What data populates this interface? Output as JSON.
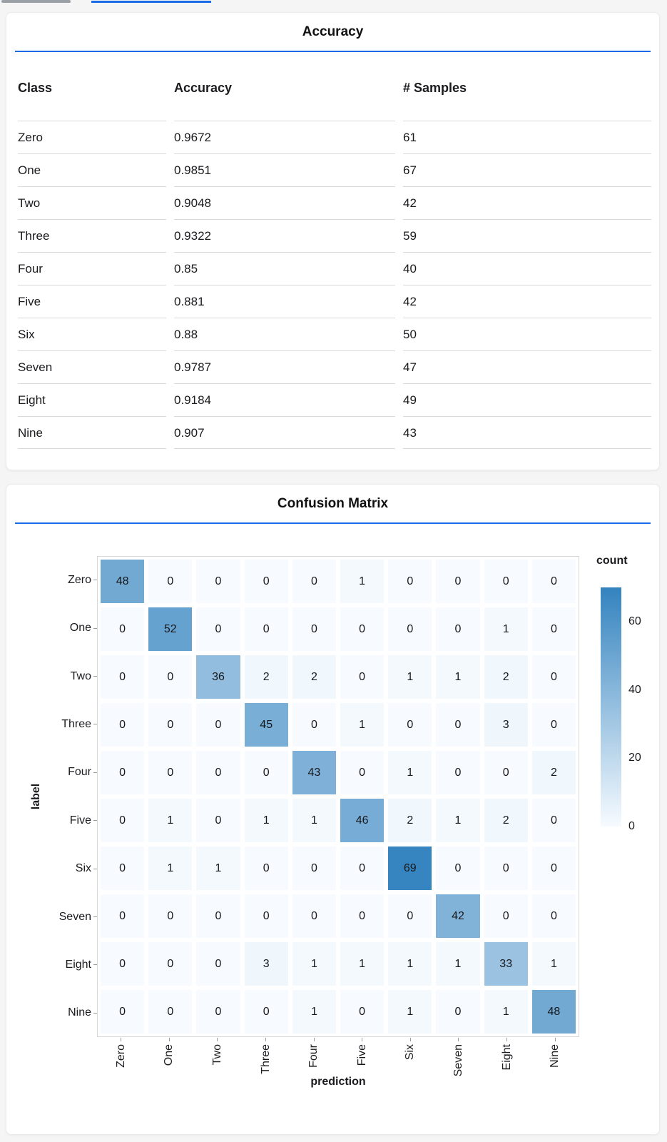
{
  "colors": {
    "accent_blue": "#1a6be8",
    "inactive_tab_gray": "#9aa0a6",
    "table_border": "#d9d9d9",
    "heat_min": "#f7fbff",
    "heat_max": "#3383bf"
  },
  "chart_data": [
    {
      "type": "table",
      "title": "Accuracy",
      "columns": [
        "Class",
        "Accuracy",
        "# Samples"
      ],
      "rows": [
        [
          "Zero",
          "0.9672",
          "61"
        ],
        [
          "One",
          "0.9851",
          "67"
        ],
        [
          "Two",
          "0.9048",
          "42"
        ],
        [
          "Three",
          "0.9322",
          "59"
        ],
        [
          "Four",
          "0.85",
          "40"
        ],
        [
          "Five",
          "0.881",
          "42"
        ],
        [
          "Six",
          "0.88",
          "50"
        ],
        [
          "Seven",
          "0.9787",
          "47"
        ],
        [
          "Eight",
          "0.9184",
          "49"
        ],
        [
          "Nine",
          "0.907",
          "43"
        ]
      ]
    },
    {
      "type": "heatmap",
      "title": "Confusion Matrix",
      "xlabel": "prediction",
      "ylabel": "label",
      "categories": [
        "Zero",
        "One",
        "Two",
        "Three",
        "Four",
        "Five",
        "Six",
        "Seven",
        "Eight",
        "Nine"
      ],
      "matrix": [
        [
          48,
          0,
          0,
          0,
          0,
          1,
          0,
          0,
          0,
          0
        ],
        [
          0,
          52,
          0,
          0,
          0,
          0,
          0,
          0,
          1,
          0
        ],
        [
          0,
          0,
          36,
          2,
          2,
          0,
          1,
          1,
          2,
          0
        ],
        [
          0,
          0,
          0,
          45,
          0,
          1,
          0,
          0,
          3,
          0
        ],
        [
          0,
          0,
          0,
          0,
          43,
          0,
          1,
          0,
          0,
          2
        ],
        [
          0,
          1,
          0,
          1,
          1,
          46,
          2,
          1,
          2,
          0
        ],
        [
          0,
          1,
          1,
          0,
          0,
          0,
          69,
          0,
          0,
          0
        ],
        [
          0,
          0,
          0,
          0,
          0,
          0,
          0,
          42,
          0,
          0
        ],
        [
          0,
          0,
          0,
          3,
          1,
          1,
          1,
          1,
          33,
          1
        ],
        [
          0,
          0,
          0,
          0,
          1,
          0,
          1,
          0,
          1,
          48
        ]
      ],
      "legend": {
        "title": "count",
        "ticks": [
          60,
          40,
          20,
          0
        ],
        "domain": [
          0,
          70
        ]
      },
      "grid": false,
      "legend_position": "right"
    }
  ]
}
